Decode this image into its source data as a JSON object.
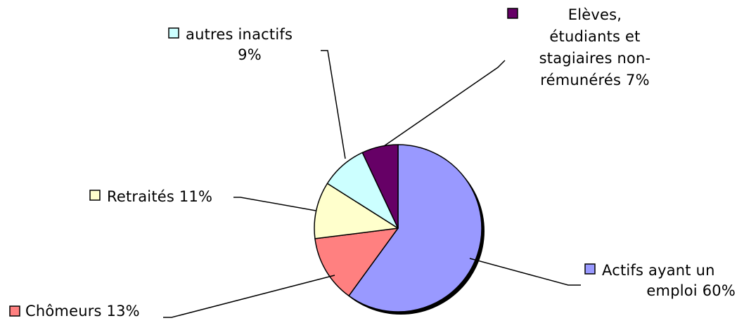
{
  "chart_data": {
    "type": "pie",
    "title": "",
    "slices": [
      {
        "name": "Actifs ayant un emploi",
        "value": 60,
        "color": "#9999ff",
        "label_lines": [
          "Actifs ayant un",
          "emploi 60%"
        ]
      },
      {
        "name": "Chômeurs",
        "value": 13,
        "color": "#ff8080",
        "label_lines": [
          "Chômeurs 13%"
        ]
      },
      {
        "name": "Retraités",
        "value": 11,
        "color": "#ffffcc",
        "label_lines": [
          "Retraités 11%"
        ]
      },
      {
        "name": "autres inactifs",
        "value": 9,
        "color": "#ccffff",
        "label_lines": [
          "autres inactifs",
          "9%"
        ]
      },
      {
        "name": "Elèves, étudiants et stagiaires non-rémunérés",
        "value": 7,
        "color": "#660066",
        "label_lines": [
          "Elèves,",
          "étudiants et",
          "stagiaires non-",
          "rémunérés 7%"
        ]
      }
    ],
    "start_angle_deg": 0,
    "direction": "clockwise",
    "legend": "none",
    "data_labels": "outside-with-leader-lines"
  }
}
